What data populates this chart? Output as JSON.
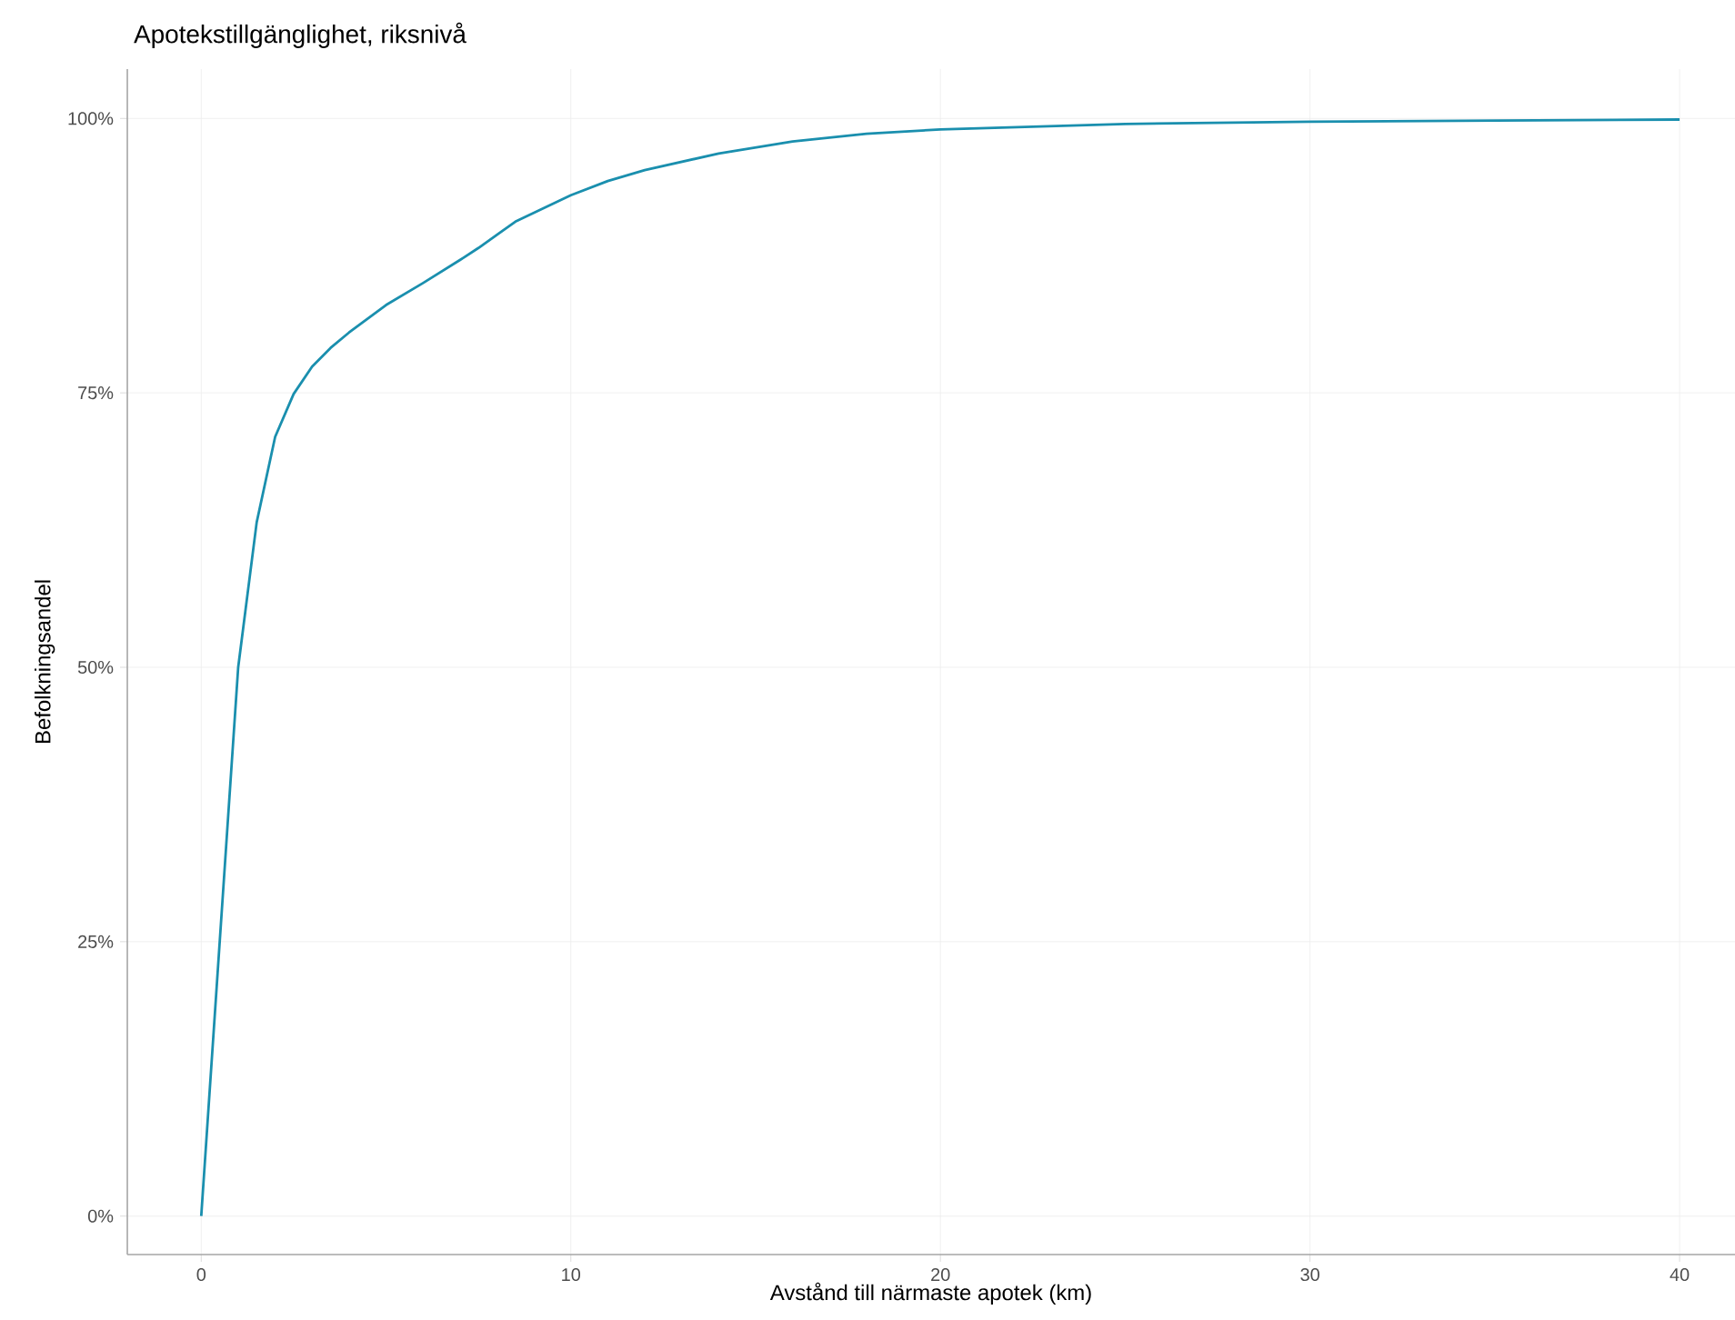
{
  "chart_data": {
    "type": "line",
    "title": "Apotekstillgänglighet, riksnivå",
    "xlabel": "Avstånd till närmaste apotek (km)",
    "ylabel": "Befolkningsandel",
    "x": [
      0,
      1,
      1.5,
      2,
      2.5,
      3,
      3.5,
      4,
      5,
      6,
      7,
      7.5,
      8.5,
      10,
      11,
      12,
      14,
      16,
      18,
      20,
      25,
      30,
      35,
      40
    ],
    "series": [
      {
        "color": "#1a8fae",
        "values": [
          0,
          50,
          63.2,
          71,
          74.9,
          77.4,
          79.1,
          80.5,
          83,
          85,
          87.1,
          88.2,
          90.6,
          93,
          94.3,
          95.3,
          96.8,
          97.9,
          98.6,
          99,
          99.5,
          99.7,
          99.8,
          99.9
        ]
      }
    ],
    "xlim": [
      -2,
      41.5
    ],
    "ylim": [
      -3.5,
      104.5
    ],
    "xticks": [
      0,
      10,
      20,
      30,
      40
    ],
    "yticks": [
      {
        "value": 0,
        "label": "0%"
      },
      {
        "value": 25,
        "label": "25%"
      },
      {
        "value": 50,
        "label": "50%"
      },
      {
        "value": 75,
        "label": "75%"
      },
      {
        "value": 100,
        "label": "100%"
      }
    ],
    "grid": true,
    "marker": "none",
    "line_style": "solid"
  }
}
